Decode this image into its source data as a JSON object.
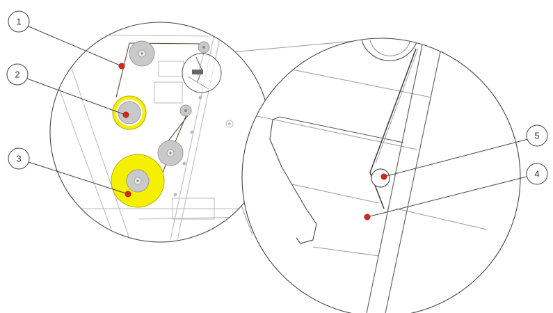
{
  "colors": {
    "marker": "#d9261c",
    "supply_roll": "#f5ef00",
    "roller": "#c9c9c9",
    "line": "#444444",
    "ribbon": "#5e4a32",
    "background": "#ffffff"
  },
  "callouts": [
    {
      "id": "callout-1",
      "label": "1"
    },
    {
      "id": "callout-2",
      "label": "2"
    },
    {
      "id": "callout-3",
      "label": "3"
    },
    {
      "id": "callout-4",
      "label": "4"
    },
    {
      "id": "callout-5",
      "label": "5"
    }
  ]
}
